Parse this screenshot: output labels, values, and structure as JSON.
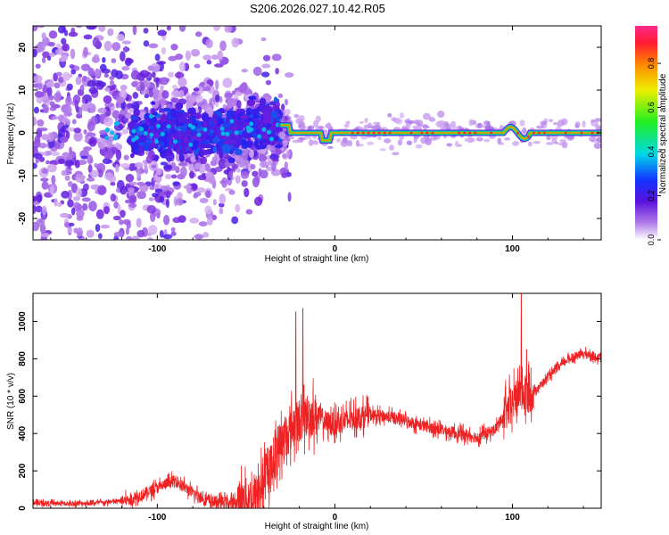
{
  "page": {
    "title": "S206.2026.027.10.42.R05"
  },
  "colors": {
    "snr_line": "#ee2222",
    "axes": "#000000",
    "spec_low": "#e8d8f8",
    "spec_mid": "#5511dd",
    "spec_high": "#ff1a40"
  },
  "chart_data": [
    {
      "type": "heatmap",
      "title": "S206.2026.027.10.42.R05",
      "xlabel": "Height of straight line (km)",
      "ylabel": "Frequency (Hz)",
      "xlim": [
        -170,
        150
      ],
      "ylim": [
        -25,
        25
      ],
      "xticks": [
        -100,
        0,
        100
      ],
      "yticks": [
        -20,
        -10,
        0,
        10,
        20
      ],
      "colorbar": {
        "label": "Normalized spectral amplitude",
        "range": [
          0,
          0.97
        ],
        "ticks": [
          0.0,
          0.2,
          0.4,
          0.6,
          0.8
        ],
        "colormap": "rainbow (white-purple-blue-cyan-green-yellow-red-magenta)"
      },
      "description_points": {
        "trace_frequency_hz": 0,
        "trace_start_km": -30,
        "trace_end_km": 150,
        "dispersed_region_km": [
          -170,
          -30
        ]
      }
    },
    {
      "type": "line",
      "xlabel": "Height of straight line (km)",
      "ylabel": "SNR (10 * v/v)",
      "xlim": [
        -170,
        150
      ],
      "ylim": [
        0,
        1150
      ],
      "xticks": [
        -100,
        0,
        100
      ],
      "yticks": [
        0,
        200,
        400,
        600,
        800,
        1000
      ],
      "series": [
        {
          "x": [
            -170,
            -150,
            -130,
            -115,
            -100,
            -90,
            -80,
            -70,
            -55,
            -45,
            -38,
            -32,
            -25,
            -20,
            -15,
            -10,
            -5,
            0,
            10,
            20,
            30,
            40,
            50,
            60,
            70,
            80,
            90,
            95,
            100,
            104,
            108,
            112,
            120,
            130,
            140,
            150
          ],
          "y": [
            30,
            25,
            30,
            45,
            110,
            150,
            80,
            35,
            30,
            60,
            180,
            330,
            420,
            470,
            500,
            500,
            460,
            450,
            480,
            500,
            490,
            470,
            440,
            420,
            400,
            380,
            420,
            490,
            560,
            620,
            600,
            620,
            700,
            790,
            830,
            800
          ]
        }
      ],
      "spikes": [
        {
          "x": -22,
          "y": 1050
        },
        {
          "x": -18,
          "y": 1070
        },
        {
          "x": 105,
          "y": 1150
        },
        {
          "x": 108,
          "y": 850
        }
      ]
    }
  ]
}
